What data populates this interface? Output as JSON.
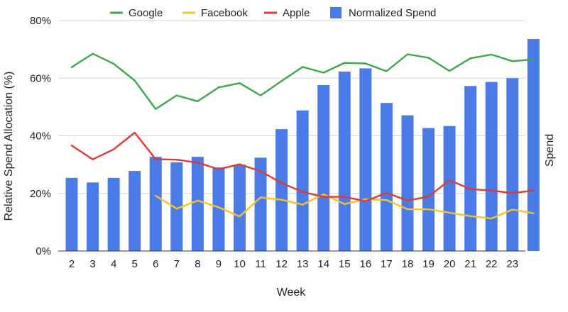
{
  "chart_data": {
    "type": "bar",
    "xlabel": "Week",
    "ylabel": "Relative Spend Allocation (%)",
    "y2label": "Spend",
    "ylim": [
      0,
      80
    ],
    "y_ticks": [
      "0%",
      "20%",
      "40%",
      "60%",
      "80%"
    ],
    "y_tick_values": [
      0,
      20,
      40,
      60,
      80
    ],
    "grid": true,
    "legend_position": "top",
    "categories": [
      "2",
      "3",
      "4",
      "5",
      "6",
      "7",
      "8",
      "9",
      "10",
      "11",
      "12",
      "13",
      "14",
      "15",
      "16",
      "17",
      "18",
      "19",
      "20",
      "21",
      "22",
      "23",
      ""
    ],
    "series": [
      {
        "name": "Google",
        "type": "line",
        "color": "#3ba84a",
        "values": [
          63.8,
          68.5,
          65.0,
          59.2,
          49.3,
          54.0,
          52.0,
          56.8,
          58.3,
          54.0,
          59.0,
          63.9,
          61.9,
          65.3,
          65.1,
          62.4,
          68.3,
          67.1,
          62.5,
          66.9,
          68.2,
          65.9,
          66.5
        ]
      },
      {
        "name": "Facebook",
        "type": "line",
        "color": "#f4c324",
        "values": [
          null,
          null,
          null,
          null,
          19.2,
          14.7,
          17.5,
          15.2,
          12.0,
          18.6,
          17.8,
          16.1,
          19.7,
          16.3,
          18.0,
          17.7,
          14.5,
          14.5,
          13.3,
          12.1,
          11.3,
          14.4,
          13.1
        ]
      },
      {
        "name": "Apple",
        "type": "line",
        "color": "#de3b32",
        "values": [
          36.6,
          31.8,
          35.3,
          41.1,
          31.9,
          31.7,
          30.7,
          28.4,
          30.1,
          27.7,
          23.6,
          20.5,
          18.8,
          18.8,
          17.3,
          20.2,
          17.5,
          18.9,
          24.6,
          21.5,
          21.0,
          20.1,
          21.0
        ]
      },
      {
        "name": "Normalized Spend",
        "type": "bar",
        "color": "#4b7be8",
        "values": [
          25.4,
          23.8,
          25.4,
          27.8,
          32.7,
          30.8,
          32.7,
          29.0,
          30.0,
          32.4,
          42.3,
          48.8,
          57.6,
          62.3,
          63.4,
          51.4,
          47.1,
          42.7,
          43.4,
          57.3,
          58.7,
          60.0,
          73.6
        ]
      }
    ]
  }
}
